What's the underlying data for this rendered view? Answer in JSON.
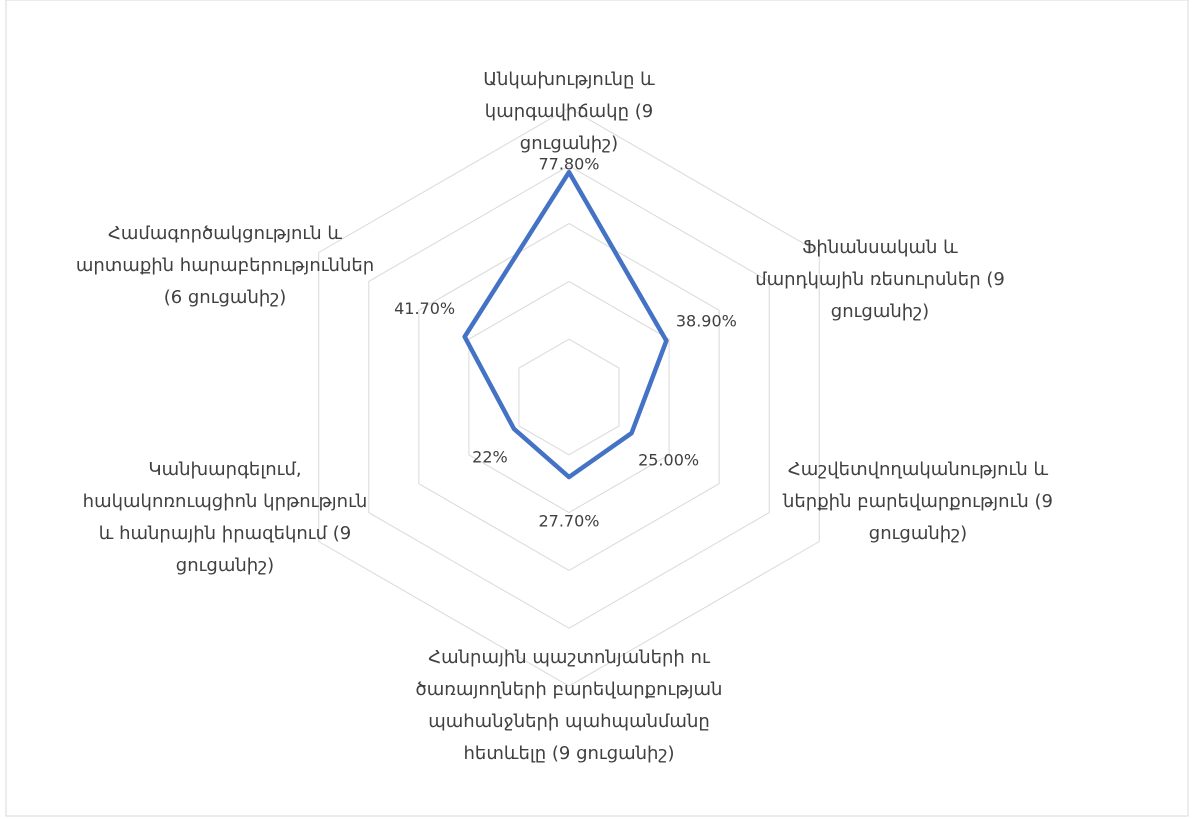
{
  "chart_data": {
    "type": "radar",
    "categories": [
      "Անկախությունը և կարգավիճակը (9 ցուցանիշ)",
      "Ֆինանսական և մարդկային ռեսուրսներ (9 ցուցանիշ)",
      "Հաշվետվողականություն և ներքին բարեվարքություն (9 ցուցանիշ)",
      "Հանրային պաշտոնյաների ու ծառայողների բարեվարքության պահանջների պահպանմանը հետևելը (9 ցուցանիշ)",
      "Կանխարգելում, հակակոռուպցիոն կրթություն և հանրային իրազեկում (9 ցուցանիշ)",
      "Համագործակցություն և արտաքին հարաբերություններ (6 ցուցանիշ)"
    ],
    "series": [
      {
        "color": "#4472c4",
        "values": [
          77.8,
          38.9,
          25,
          27.7,
          22,
          41.7
        ],
        "value_labels": [
          "77.80%",
          "38.90%",
          "25.00%",
          "27.70%",
          "22%",
          "41.70%"
        ]
      }
    ],
    "rlim": [
      0,
      100
    ],
    "rticks": [
      0,
      20,
      40,
      60,
      80,
      100
    ],
    "grid": true
  }
}
